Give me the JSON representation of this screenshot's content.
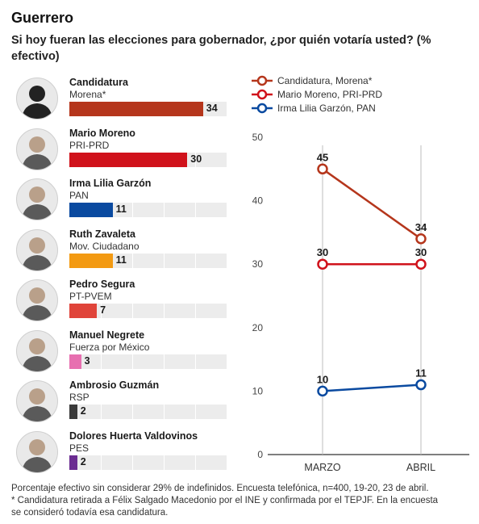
{
  "header": {
    "state": "Guerrero",
    "question": "Si hoy fueran las elecciones para gobernador, ¿por quién votaría usted? (% efectivo)"
  },
  "candidates": [
    {
      "name": "Candidatura",
      "party": "Morena*",
      "value": 34,
      "color": "#b5361c",
      "value_label": "34"
    },
    {
      "name": "Mario Moreno",
      "party": "PRI-PRD",
      "value": 30,
      "color": "#d0121b",
      "value_label": "30"
    },
    {
      "name": "Irma Lilia Garzón",
      "party": "PAN",
      "value": 11,
      "color": "#0a4aa0",
      "value_label": "11"
    },
    {
      "name": "Ruth Zavaleta",
      "party": "Mov. Ciudadano",
      "value": 11,
      "color": "#f39a12",
      "value_label": "11"
    },
    {
      "name": "Pedro Segura",
      "party": "PT-PVEM",
      "value": 7,
      "color": "#e0443a",
      "value_label": "7"
    },
    {
      "name": "Manuel Negrete",
      "party": "Fuerza por México",
      "value": 3,
      "color": "#e76fb0",
      "value_label": "3"
    },
    {
      "name": "Ambrosio Guzmán",
      "party": "RSP",
      "value": 2,
      "color": "#3a3a3a",
      "value_label": "2"
    },
    {
      "name": "Dolores Huerta Valdovinos",
      "party": "PES",
      "value": 2,
      "color": "#6b2c91",
      "value_label": "2"
    }
  ],
  "chart_data": [
    {
      "type": "bar",
      "orientation": "horizontal",
      "categories": [
        "Candidatura",
        "Mario Moreno",
        "Irma Lilia Garzón",
        "Ruth Zavaleta",
        "Pedro Segura",
        "Manuel Negrete",
        "Ambrosio Guzmán",
        "Dolores Huerta Valdovinos"
      ],
      "values": [
        34,
        30,
        11,
        11,
        7,
        3,
        2,
        2
      ]
    },
    {
      "type": "line",
      "categories": [
        "MARZO",
        "ABRIL"
      ],
      "ylim": [
        0,
        50
      ],
      "yticks": [
        0,
        10,
        20,
        30,
        40,
        50
      ],
      "grid": "vertical",
      "legend_position": "top",
      "series": [
        {
          "name": "Candidatura, Morena*",
          "values": [
            45,
            34
          ],
          "color": "#b5361c"
        },
        {
          "name": "Mario Moreno, PRI-PRD",
          "values": [
            30,
            30
          ],
          "color": "#d0121b"
        },
        {
          "name": "Irma Lilia Garzón, PAN",
          "values": [
            10,
            11
          ],
          "color": "#0a4aa0"
        }
      ]
    }
  ],
  "footnote": {
    "line1": "Porcentaje efectivo sin considerar 29% de indefinidos. Encuesta telefónica, n=400, 19-20, 23 de abril.",
    "line2": "* Candidatura retirada a Félix Salgado Macedonio por el INE y confirmada por el TEPJF. En la encuesta",
    "line3": "se consideró todavía esa candidatura."
  }
}
